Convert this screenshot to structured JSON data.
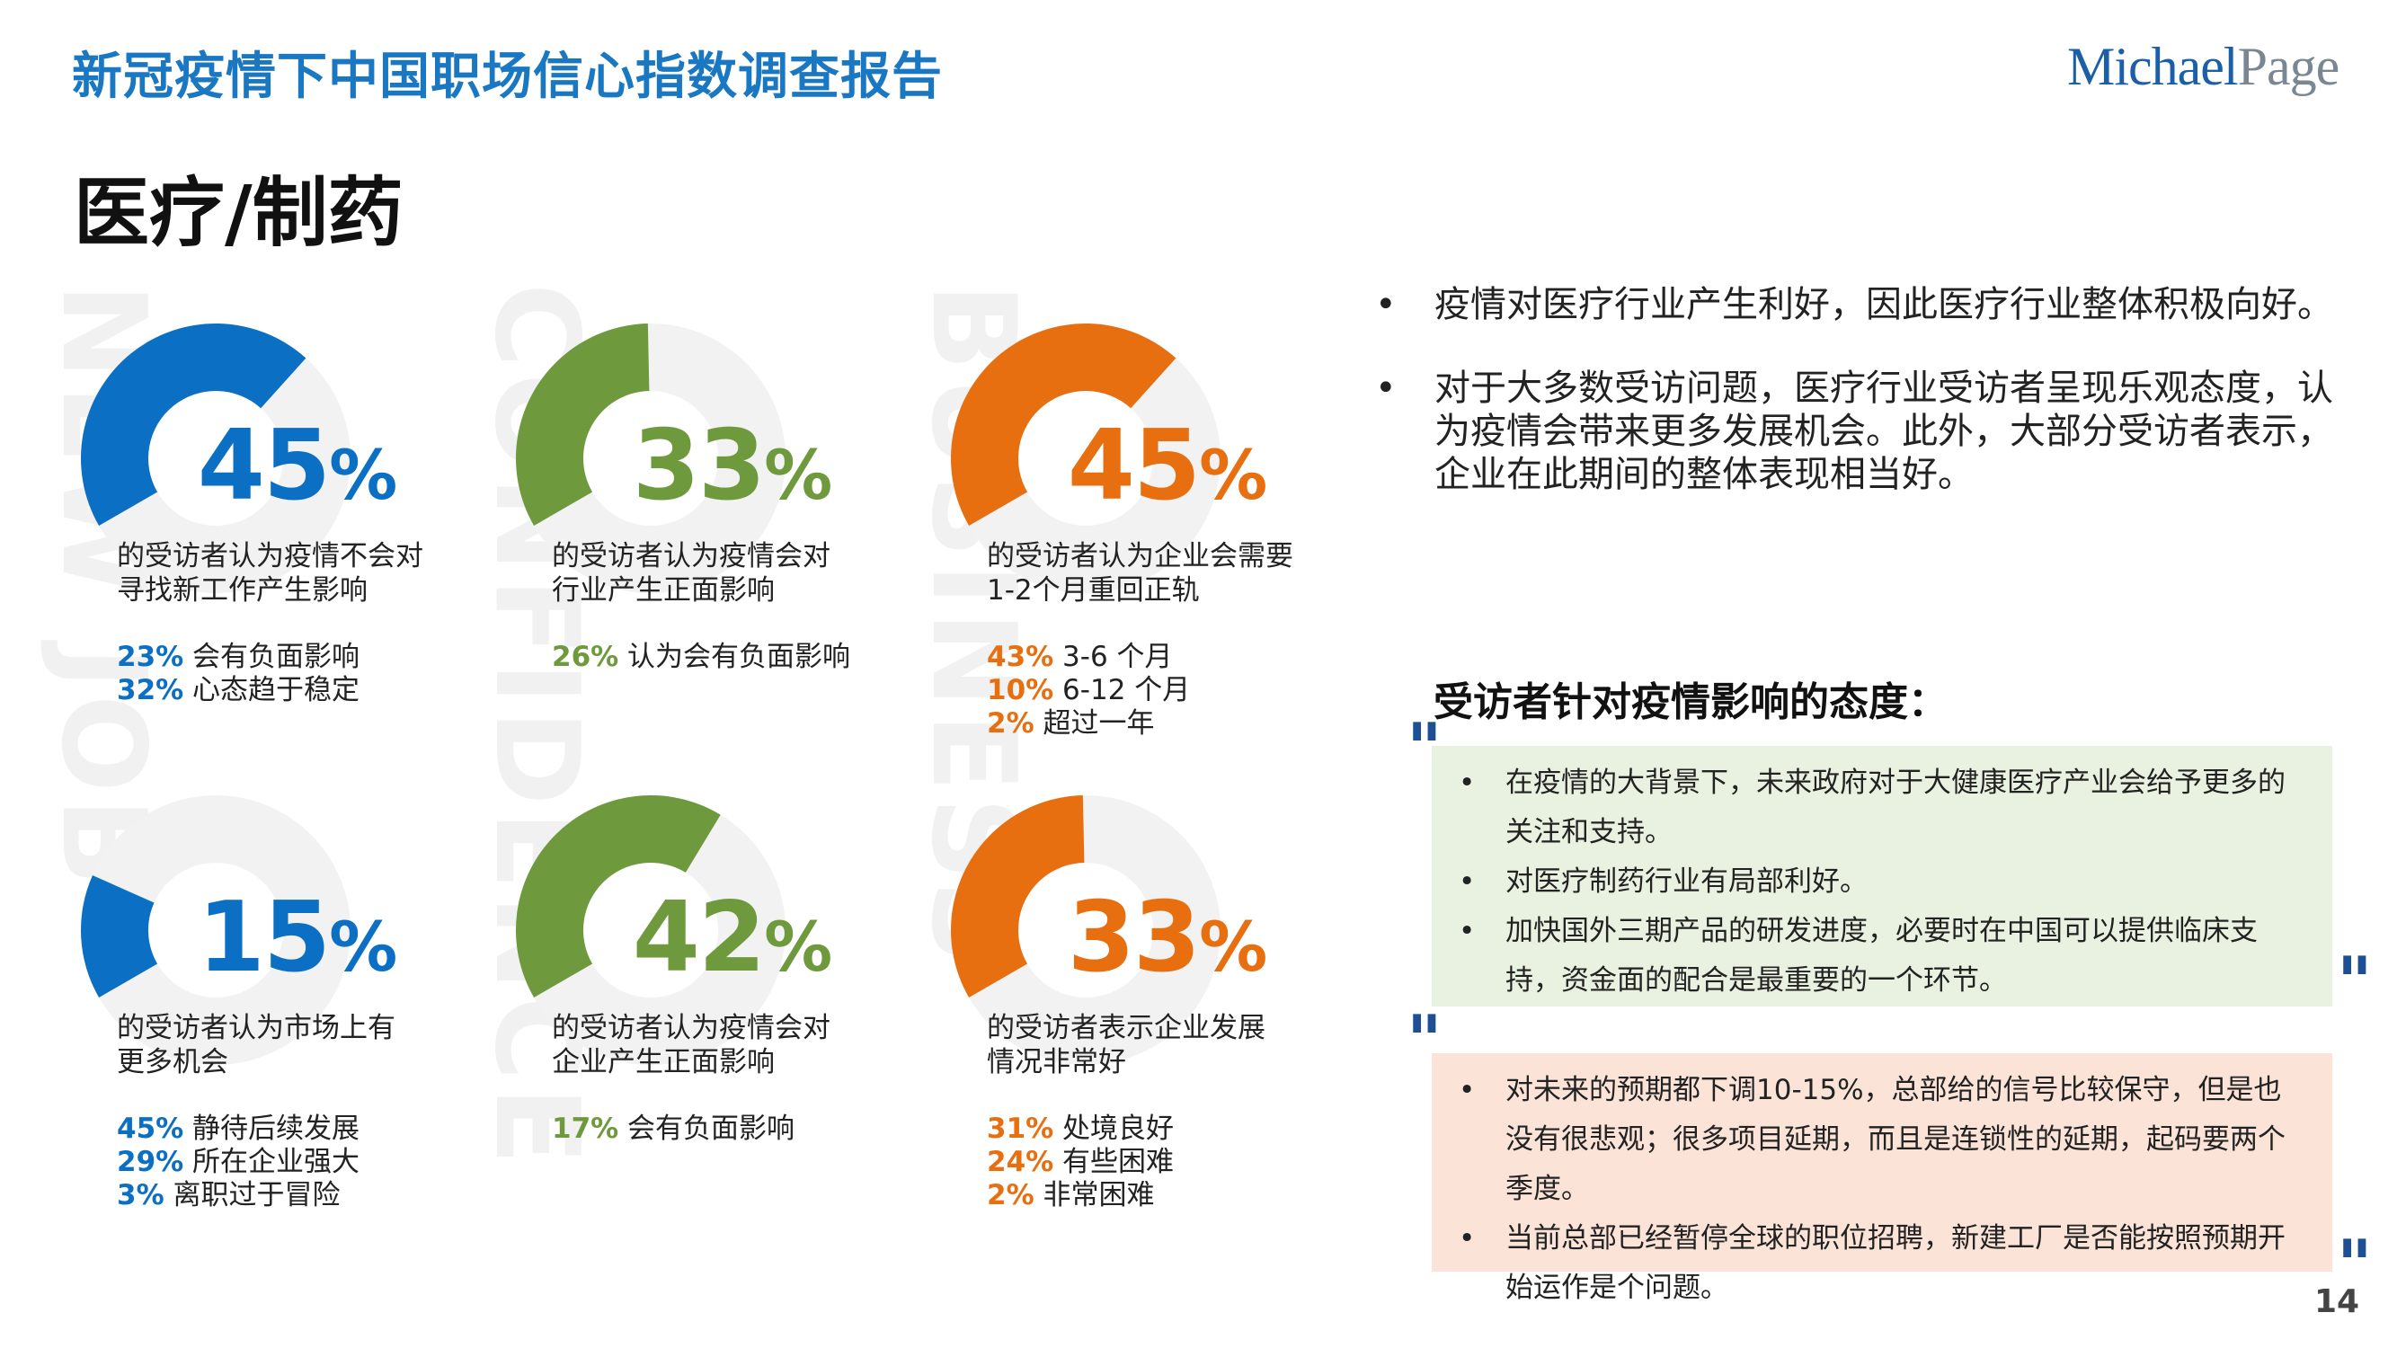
{
  "header": {
    "report_title": "新冠疫情下中国职场信心指数调查报告",
    "logo_part1": "Michael",
    "logo_part2": "Page"
  },
  "section_title": "医疗/制药",
  "watermarks": [
    "NEW JOB",
    "CONFIDENCE",
    "BUSINESS"
  ],
  "colors": {
    "blue": "#0b6fc4",
    "green": "#6e9a3d",
    "orange": "#e86f10",
    "ring_bg": "#f2f2f2"
  },
  "stats": [
    {
      "value": "45",
      "percent_sign": "%",
      "fraction": 0.45,
      "color": "blue",
      "desc": [
        "的受访者认为疫情不会对",
        "寻找新工作产生影响"
      ],
      "subs": [
        {
          "v": "23%",
          "t": " 会有负面影响"
        },
        {
          "v": "32%",
          "t": " 心态趋于稳定"
        }
      ]
    },
    {
      "value": "33",
      "percent_sign": "%",
      "fraction": 0.33,
      "color": "green",
      "desc": [
        "的受访者认为疫情会对",
        "行业产生正面影响"
      ],
      "subs": [
        {
          "v": "26%",
          "t": " 认为会有负面影响"
        }
      ]
    },
    {
      "value": "45",
      "percent_sign": "%",
      "fraction": 0.45,
      "color": "orange",
      "desc": [
        "的受访者认为企业会需要",
        "1-2个月重回正轨"
      ],
      "subs": [
        {
          "v": "43%",
          "t": " 3-6 个月"
        },
        {
          "v": "10%",
          "t": " 6-12 个月"
        },
        {
          "v": "2%",
          "t": " 超过一年"
        }
      ]
    },
    {
      "value": "15",
      "percent_sign": "%",
      "fraction": 0.15,
      "color": "blue",
      "desc": [
        "的受访者认为市场上有",
        "更多机会"
      ],
      "subs": [
        {
          "v": "45%",
          "t": " 静待后续发展"
        },
        {
          "v": "29%",
          "t": " 所在企业强大"
        },
        {
          "v": "3%",
          "t": " 离职过于冒险"
        }
      ]
    },
    {
      "value": "42",
      "percent_sign": "%",
      "fraction": 0.42,
      "color": "green",
      "desc": [
        "的受访者认为疫情会对",
        "企业产生正面影响"
      ],
      "subs": [
        {
          "v": "17%",
          "t": " 会有负面影响"
        }
      ]
    },
    {
      "value": "33",
      "percent_sign": "%",
      "fraction": 0.33,
      "color": "orange",
      "desc": [
        "的受访者表示企业发展",
        "情况非常好"
      ],
      "subs": [
        {
          "v": "31%",
          "t": " 处境良好"
        },
        {
          "v": "24%",
          "t": " 有些困难"
        },
        {
          "v": "2%",
          "t": " 非常困难"
        }
      ]
    }
  ],
  "bullets": {
    "marker": "•",
    "items": [
      "疫情对医疗行业产生利好，因此医疗行业整体积极向好。",
      "对于大多数受访问题，医疗行业受访者呈现乐观态度，认为疫情会带来更多发展机会。此外，大部分受访者表示，企业在此期间的整体表现相当好。"
    ]
  },
  "quotes": {
    "title": "受访者针对疫情影响的态度：",
    "mark": "\"",
    "positive": [
      "在疫情的大背景下，未来政府对于大健康医疗产业会给予更多的关注和支持。",
      "对医疗制药行业有局部利好。",
      "加快国外三期产品的研发进度，必要时在中国可以提供临床支持，资金面的配合是最重要的一个环节。"
    ],
    "negative": [
      "对未来的预期都下调10-15%，总部给的信号比较保守，但是也没有很悲观；很多项目延期，而且是连锁性的延期，起码要两个季度。",
      "当前总部已经暂停全球的职位招聘，新建工厂是否能按照预期开始运作是个问题。"
    ]
  },
  "page_number": "14"
}
